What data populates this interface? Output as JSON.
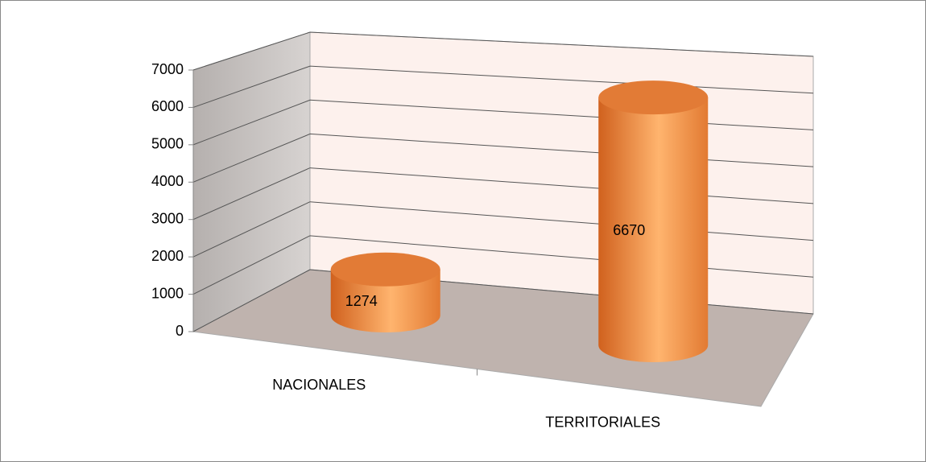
{
  "chart_data": {
    "type": "cylinder",
    "categories": [
      "NACIONALES",
      "TERRITORIALES"
    ],
    "values": [
      1274,
      6670
    ],
    "color": "#f7953f",
    "ylim": [
      0,
      7000
    ],
    "yticks": [
      0,
      1000,
      2000,
      3000,
      4000,
      5000,
      6000,
      7000
    ],
    "grid": true
  }
}
